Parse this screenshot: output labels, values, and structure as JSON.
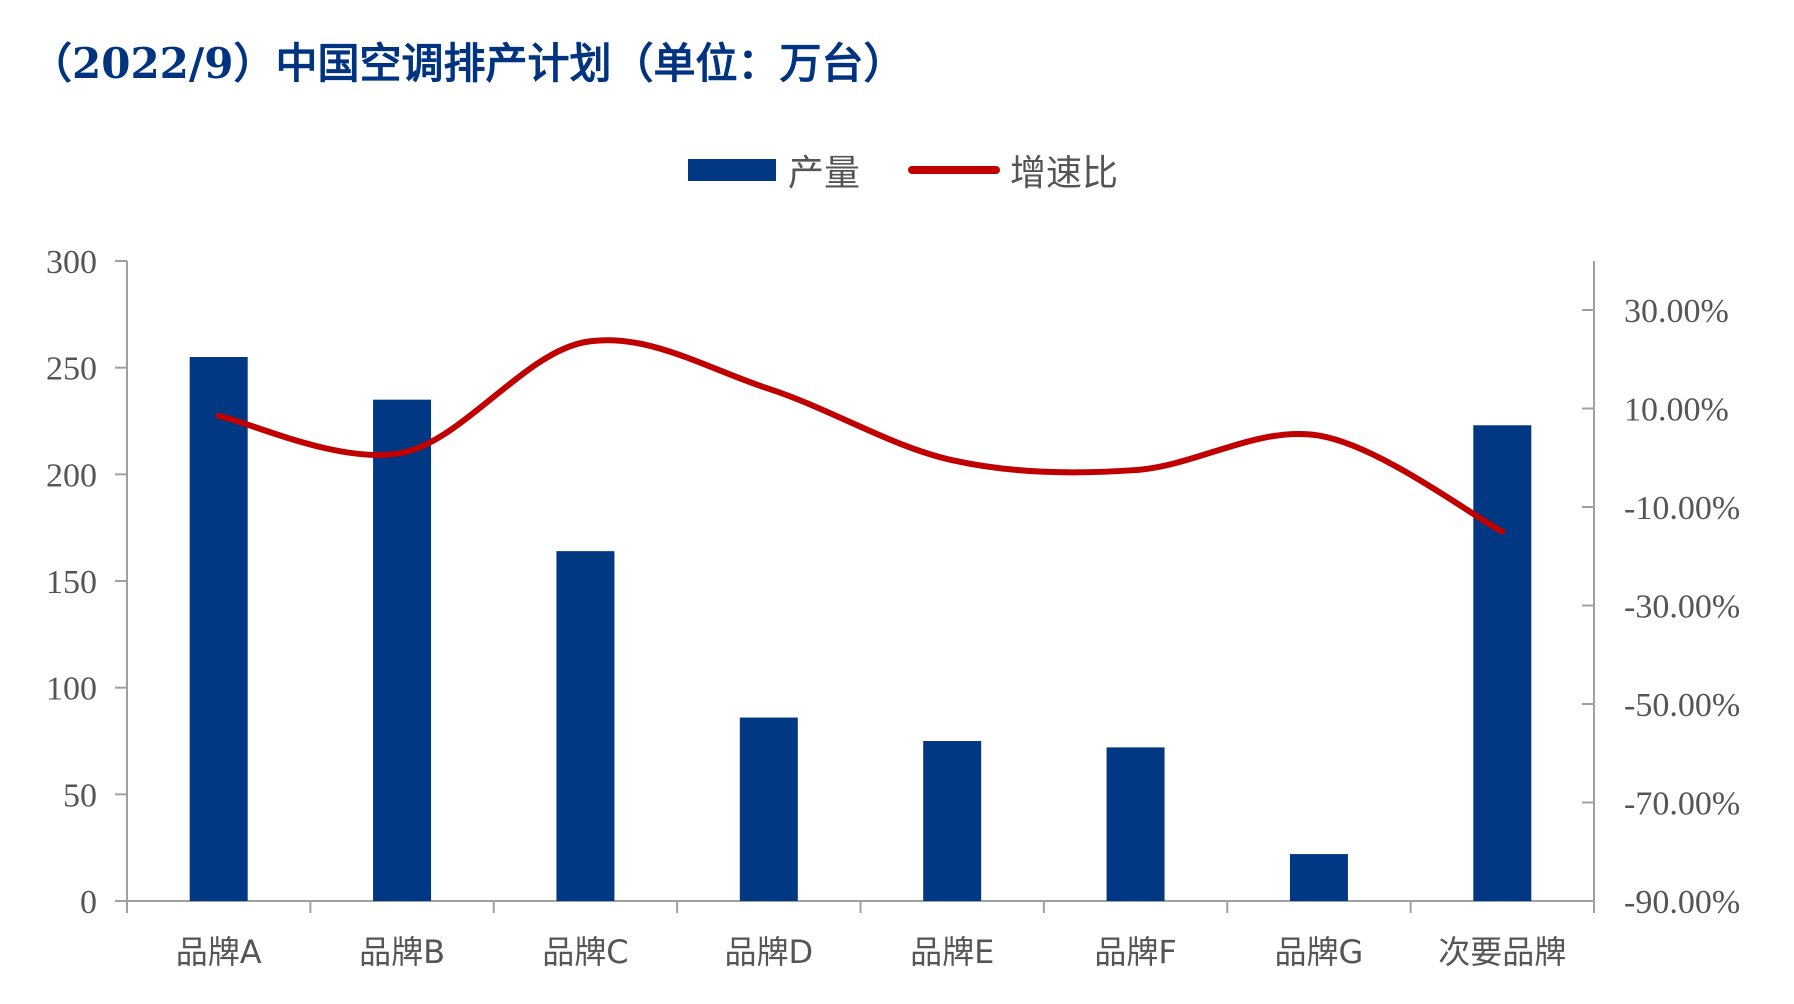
{
  "title": "（2022/9）中国空调排产计划（单位：万台）",
  "legend": {
    "bar_label": "产量",
    "line_label": "增速比"
  },
  "colors": {
    "bar": "#013883",
    "line": "#c00000",
    "title": "#003480",
    "axis": "#a0a0a0",
    "text": "#555555"
  },
  "chart_data": {
    "type": "bar",
    "title": "（2022/9）中国空调排产计划（单位：万台）",
    "categories": [
      "品牌A",
      "品牌B",
      "品牌C",
      "品牌D",
      "品牌E",
      "品牌F",
      "品牌G",
      "次要品牌"
    ],
    "series": [
      {
        "name": "产量",
        "type": "bar",
        "axis": "left",
        "values": [
          255,
          235,
          164,
          86,
          75,
          72,
          22,
          223
        ]
      },
      {
        "name": "增速比",
        "type": "line",
        "axis": "right",
        "smooth": true,
        "values": [
          8.5,
          1.0,
          23.5,
          14.0,
          -0.5,
          -2.5,
          4.5,
          -15.0
        ]
      }
    ],
    "y_left": {
      "min": 0,
      "max": 300,
      "ticks": [
        "0",
        "50",
        "100",
        "150",
        "200",
        "250",
        "300"
      ]
    },
    "y_right": {
      "min": -90,
      "max": 30,
      "ticks": [
        "-90.00%",
        "-70.00%",
        "-50.00%",
        "-30.00%",
        "-10.00%",
        "10.00%",
        "30.00%"
      ]
    },
    "legend_position": "top-center",
    "grid": false
  }
}
